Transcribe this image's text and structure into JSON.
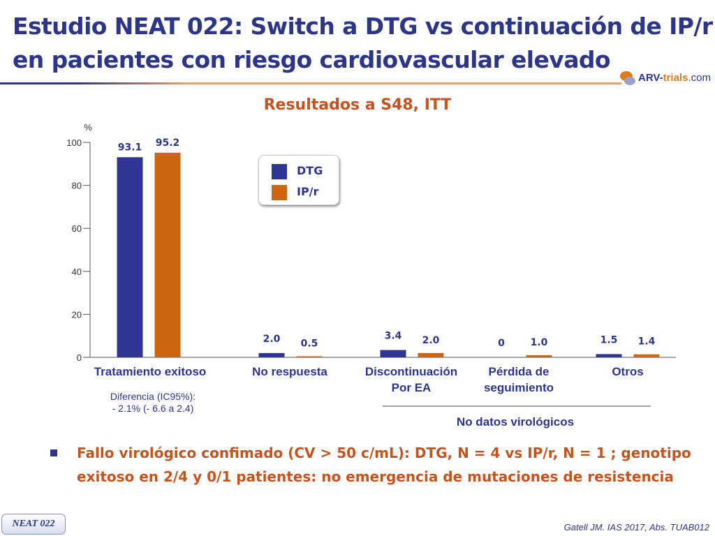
{
  "slide": {
    "title_line1": "Estudio NEAT 022: Switch a DTG vs continuación de IP/r",
    "title_line2": "en pacientes con riesgo cardiovascular elevado",
    "logo_text_prefix": "ARV-",
    "logo_text_mid": "trials",
    "logo_text_suffix": ".com",
    "subtitle": "Resultados a S48, ITT",
    "difference_label": "Diferencia (IC95%):",
    "difference_value": "- 2.1% (- 6.6 a 2.4)",
    "bullet_text": "Fallo virológico confimado (CV > 50 c/mL): DTG, N = 4 vs IP/r, N = 1 ; genotipo exitoso en 2/4 y 0/1 patientes: no emergencia de mutaciones de resistencia",
    "badge": "NEAT 022",
    "citation": "Gatell JM. IAS 2017, Abs. TUAB012"
  },
  "colors": {
    "title": "#2d3588",
    "accent": "#c5531d",
    "dtg": "#2e3592",
    "ipr": "#cc6610"
  },
  "chart_data": {
    "type": "bar",
    "ylabel": "%",
    "ylim": [
      0,
      100
    ],
    "yticks": [
      0,
      20,
      40,
      60,
      80,
      100
    ],
    "categories": [
      "Tratamiento exitoso",
      "No respuesta",
      "Discontinuación Por EA",
      "Pérdida de seguimiento",
      "Otros"
    ],
    "category_lines": [
      [
        "Tratamiento exitoso"
      ],
      [
        "No respuesta"
      ],
      [
        "Discontinuación",
        "Por EA"
      ],
      [
        "Pérdida de",
        "seguimiento"
      ],
      [
        "Otros"
      ]
    ],
    "series": [
      {
        "name": "DTG",
        "values": [
          93.1,
          2.0,
          3.4,
          0,
          1.5
        ],
        "labels": [
          "93.1",
          "2.0",
          "3.4",
          "0",
          "1.5"
        ]
      },
      {
        "name": "IP/r",
        "values": [
          95.2,
          0.5,
          2.0,
          1.0,
          1.4
        ],
        "labels": [
          "95.2",
          "0.5",
          "2.0",
          "1.0",
          "1.4"
        ]
      }
    ],
    "group_label": "No datos virológicos",
    "legend": [
      "DTG",
      "IP/r"
    ],
    "legend_position": "top"
  }
}
